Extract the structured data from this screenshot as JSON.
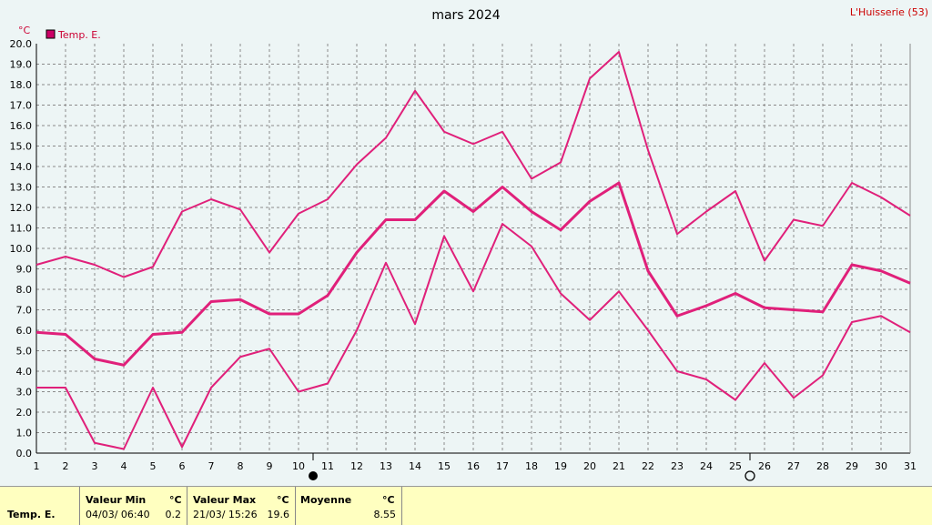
{
  "header": {
    "title": "mars 2024",
    "station": "L'Huisserie (53)",
    "unit": "°C"
  },
  "legend": {
    "label": "Temp. E.",
    "color": "#cc0066"
  },
  "chart_data": {
    "type": "line",
    "title": "mars 2024",
    "ylabel": "°C",
    "xlabel": "",
    "x": [
      1,
      2,
      3,
      4,
      5,
      6,
      7,
      8,
      9,
      10,
      11,
      12,
      13,
      14,
      15,
      16,
      17,
      18,
      19,
      20,
      21,
      22,
      23,
      24,
      25,
      26,
      27,
      28,
      29,
      30,
      31
    ],
    "ylim": [
      0,
      20
    ],
    "yticks": [
      "0.0",
      "1.0",
      "2.0",
      "3.0",
      "4.0",
      "5.0",
      "6.0",
      "7.0",
      "8.0",
      "9.0",
      "10.0",
      "11.0",
      "12.0",
      "13.0",
      "14.0",
      "15.0",
      "16.0",
      "17.0",
      "18.0",
      "19.0",
      "20.0"
    ],
    "grid": true,
    "legend_position": "top-left",
    "series": [
      {
        "name": "Temp. E.",
        "role": "max",
        "color": "#e0207a",
        "values": [
          9.2,
          9.6,
          9.2,
          8.6,
          9.1,
          11.8,
          12.4,
          11.9,
          9.8,
          11.7,
          12.4,
          14.1,
          15.4,
          17.7,
          15.7,
          15.1,
          15.7,
          13.4,
          14.2,
          18.3,
          19.6,
          14.8,
          10.7,
          11.8,
          12.8,
          9.4,
          11.4,
          11.1,
          13.2,
          12.5,
          11.6
        ]
      },
      {
        "name": "",
        "role": "mean",
        "color": "#e0207a",
        "values": [
          5.9,
          5.8,
          4.6,
          4.3,
          5.8,
          5.9,
          7.4,
          7.5,
          6.8,
          6.8,
          7.7,
          9.8,
          11.4,
          11.4,
          12.8,
          11.8,
          13.0,
          11.8,
          10.9,
          12.3,
          13.2,
          8.9,
          6.7,
          7.2,
          7.8,
          7.1,
          7.0,
          6.9,
          9.2,
          8.9,
          8.3
        ]
      },
      {
        "name": "",
        "role": "min",
        "color": "#e0207a",
        "values": [
          3.2,
          3.2,
          0.5,
          0.2,
          3.2,
          0.3,
          3.2,
          4.7,
          5.1,
          3.0,
          3.4,
          6.0,
          9.3,
          6.3,
          10.6,
          7.9,
          11.2,
          10.1,
          7.8,
          6.5,
          7.9,
          6.0,
          4.0,
          3.6,
          2.6,
          4.4,
          2.7,
          3.8,
          6.4,
          6.7,
          5.9
        ]
      }
    ],
    "moon_phases": [
      {
        "day": 10,
        "phase": "new"
      },
      {
        "day": 25,
        "phase": "full"
      }
    ]
  },
  "summary": {
    "row_label": "Temp. E.",
    "min_label": "Valeur Min",
    "min_unit": "°C",
    "min_when": "04/03/  06:40",
    "min_value": "0.2",
    "max_label": "Valeur Max",
    "max_unit": "°C",
    "max_when": "21/03/  15:26",
    "max_value": "19.6",
    "mean_label": "Moyenne",
    "mean_unit": "°C",
    "mean_value": "8.55"
  }
}
